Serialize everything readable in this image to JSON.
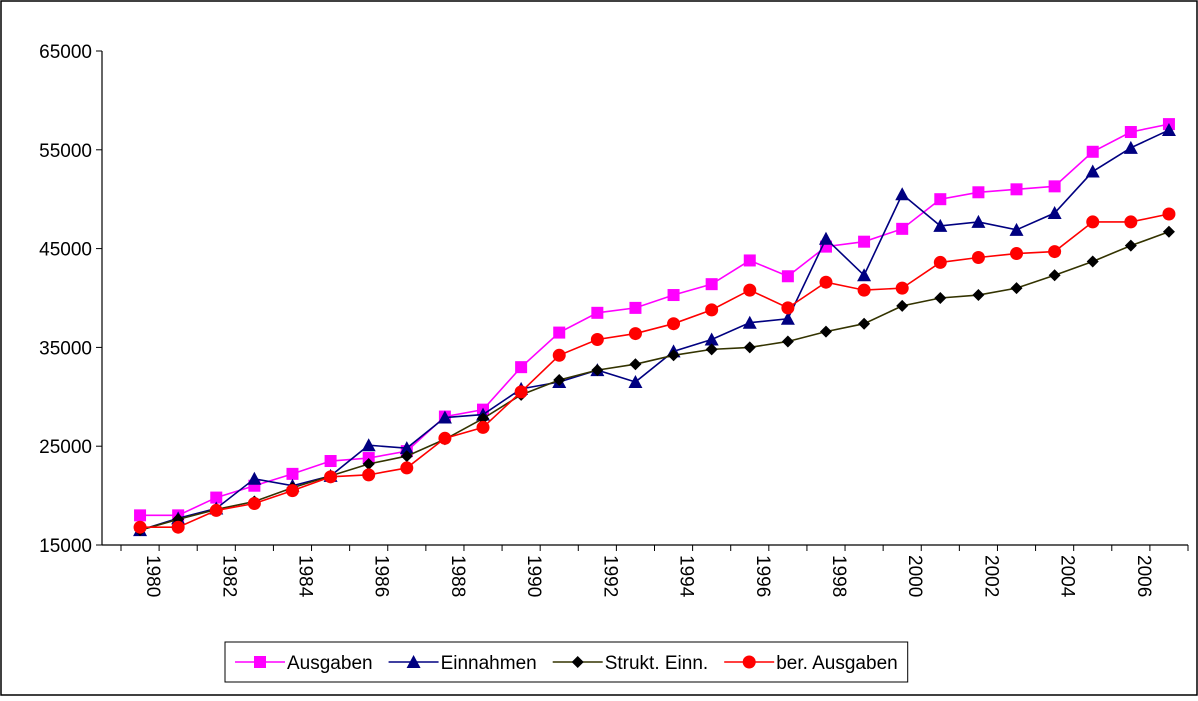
{
  "chart_data": {
    "type": "line",
    "categories": [
      "1980",
      null,
      "1982",
      null,
      "1984",
      null,
      "1986",
      null,
      "1988",
      null,
      "1990",
      null,
      "1992",
      null,
      "1994",
      null,
      "1996",
      null,
      "1998",
      null,
      "2000",
      null,
      "2002",
      null,
      "2004",
      null,
      "2006",
      null
    ],
    "ylim": [
      15000,
      65000
    ],
    "yticks": [
      15000,
      25000,
      35000,
      45000,
      55000,
      65000
    ],
    "grid": false,
    "legend": "bottom",
    "series": [
      {
        "name": "Ausgaben",
        "color": "#ff00ff",
        "marker": "square",
        "values": [
          18000,
          18000,
          19800,
          21000,
          22200,
          23500,
          23800,
          24500,
          28000,
          28700,
          33000,
          36500,
          38500,
          39000,
          40300,
          41400,
          43800,
          42200,
          45200,
          45700,
          47000,
          50000,
          50700,
          51000,
          51300,
          54800,
          56800,
          57600
        ]
      },
      {
        "name": "Einnahmen",
        "color": "#000080",
        "marker": "triangle",
        "values": [
          16500,
          17700,
          18700,
          21700,
          21000,
          22000,
          25100,
          24800,
          27900,
          28200,
          30800,
          31500,
          32700,
          31500,
          34600,
          35800,
          37500,
          37900,
          46000,
          42300,
          50500,
          47300,
          47700,
          46900,
          48600,
          52800,
          55200,
          57000
        ]
      },
      {
        "name": "Strukt. Einn.",
        "color": "#333300",
        "marker": "diamond",
        "values": [
          16500,
          17600,
          18600,
          19400,
          20800,
          22000,
          23200,
          24000,
          25700,
          27800,
          30200,
          31700,
          32700,
          33300,
          34200,
          34800,
          35000,
          35600,
          36600,
          37400,
          39200,
          40000,
          40300,
          41000,
          42300,
          43700,
          45300,
          46700
        ]
      },
      {
        "name": "ber. Ausgaben",
        "color": "#ff0000",
        "marker": "circle",
        "values": [
          16800,
          16800,
          18500,
          19200,
          20500,
          21900,
          22100,
          22800,
          25800,
          26900,
          30500,
          34200,
          35800,
          36400,
          37400,
          38800,
          40800,
          39000,
          41600,
          40800,
          41000,
          43600,
          44100,
          44500,
          44700,
          47700,
          47700,
          48500
        ]
      }
    ]
  }
}
